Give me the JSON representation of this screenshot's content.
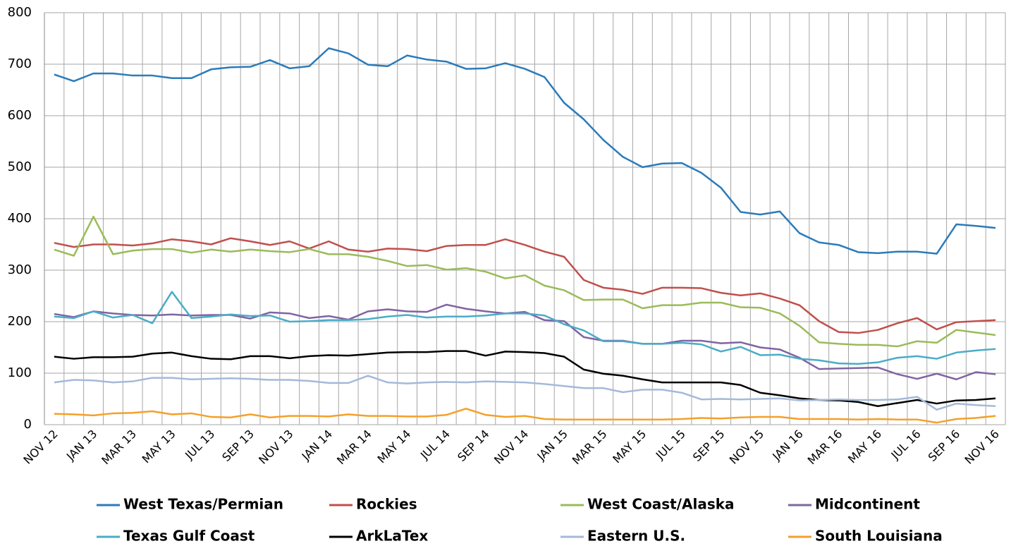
{
  "chart_data": {
    "type": "line",
    "categories": [
      "NOV 12",
      null,
      "JAN 13",
      null,
      "MAR 13",
      null,
      "MAY 13",
      null,
      "JUL 13",
      null,
      "SEP 13",
      null,
      "NOV 13",
      null,
      "JAN 14",
      null,
      "MAR 14",
      null,
      "MAY 14",
      null,
      "JUL 14",
      null,
      "SEP 14",
      null,
      "NOV 14",
      null,
      "JAN 15",
      null,
      "MAR 15",
      null,
      "MAY 15",
      null,
      "JUL 15",
      null,
      "SEP 15",
      null,
      "NOV 15",
      null,
      "JAN 16",
      null,
      "MAR 16",
      null,
      "MAY 16",
      null,
      "JUL 16",
      null,
      "SEP 16",
      null,
      "NOV 16"
    ],
    "ylim": [
      0,
      800
    ],
    "yticks": [
      0,
      100,
      200,
      300,
      400,
      500,
      600,
      700,
      800
    ],
    "grid": true,
    "series": [
      {
        "name": "West Texas/Permian",
        "color": "#2b7bba",
        "values": [
          680,
          667,
          682,
          682,
          678,
          678,
          673,
          673,
          690,
          694,
          695,
          708,
          692,
          696,
          731,
          721,
          699,
          696,
          717,
          709,
          705,
          691,
          692,
          702,
          691,
          675,
          625,
          593,
          553,
          520,
          500,
          507,
          508,
          489,
          460,
          413,
          408,
          414,
          372,
          354,
          349,
          335,
          333,
          336,
          336,
          332,
          389,
          386,
          382
        ]
      },
      {
        "name": "Rockies",
        "color": "#c0504d",
        "values": [
          353,
          345,
          350,
          350,
          348,
          352,
          360,
          356,
          350,
          362,
          356,
          349,
          356,
          342,
          356,
          340,
          336,
          342,
          341,
          337,
          347,
          349,
          349,
          360,
          349,
          336,
          326,
          281,
          266,
          262,
          254,
          266,
          266,
          265,
          256,
          251,
          255,
          245,
          232,
          201,
          180,
          178,
          184,
          197,
          207,
          185,
          199,
          201,
          203
        ]
      },
      {
        "name": "West Coast/Alaska",
        "color": "#9bbb59",
        "values": [
          340,
          328,
          404,
          331,
          338,
          341,
          341,
          334,
          340,
          336,
          340,
          337,
          335,
          341,
          331,
          331,
          326,
          318,
          308,
          310,
          301,
          304,
          297,
          284,
          290,
          270,
          261,
          242,
          243,
          243,
          226,
          232,
          232,
          237,
          237,
          228,
          227,
          216,
          192,
          160,
          157,
          155,
          155,
          152,
          162,
          159,
          184,
          179,
          174
        ]
      },
      {
        "name": "Midcontinent",
        "color": "#8064a2",
        "values": [
          215,
          209,
          220,
          216,
          213,
          212,
          214,
          212,
          213,
          213,
          206,
          218,
          216,
          207,
          211,
          204,
          220,
          224,
          220,
          219,
          233,
          225,
          220,
          216,
          219,
          203,
          201,
          170,
          163,
          163,
          157,
          157,
          163,
          163,
          158,
          160,
          150,
          146,
          130,
          108,
          109,
          110,
          111,
          98,
          89,
          99,
          88,
          102,
          98
        ]
      },
      {
        "name": "Texas Gulf Coast",
        "color": "#4bacc6",
        "values": [
          210,
          207,
          220,
          208,
          213,
          197,
          258,
          207,
          210,
          214,
          211,
          212,
          200,
          201,
          203,
          203,
          205,
          210,
          213,
          208,
          210,
          210,
          212,
          216,
          216,
          212,
          195,
          183,
          162,
          162,
          157,
          157,
          159,
          156,
          142,
          151,
          135,
          136,
          128,
          125,
          119,
          118,
          121,
          130,
          133,
          128,
          140,
          144,
          147
        ]
      },
      {
        "name": "ArkLaTex",
        "color": "#000000",
        "values": [
          132,
          128,
          131,
          131,
          132,
          138,
          140,
          133,
          128,
          127,
          133,
          133,
          129,
          133,
          135,
          134,
          137,
          140,
          141,
          141,
          143,
          143,
          134,
          142,
          141,
          139,
          132,
          107,
          99,
          95,
          88,
          82,
          82,
          82,
          82,
          77,
          62,
          57,
          51,
          48,
          47,
          44,
          36,
          42,
          48,
          41,
          47,
          48,
          51
        ]
      },
      {
        "name": "Eastern U.S.",
        "color": "#a5b9d9",
        "values": [
          82,
          87,
          86,
          82,
          84,
          91,
          91,
          88,
          89,
          90,
          89,
          87,
          87,
          85,
          81,
          81,
          95,
          82,
          80,
          82,
          83,
          82,
          84,
          83,
          82,
          79,
          75,
          71,
          71,
          63,
          68,
          68,
          62,
          49,
          50,
          49,
          50,
          51,
          47,
          48,
          49,
          48,
          48,
          49,
          54,
          29,
          41,
          38,
          36
        ]
      },
      {
        "name": "South Louisiana",
        "color": "#f5a02a",
        "values": [
          21,
          20,
          18,
          22,
          23,
          26,
          20,
          22,
          15,
          14,
          20,
          14,
          17,
          17,
          16,
          20,
          17,
          17,
          16,
          16,
          19,
          31,
          19,
          15,
          17,
          11,
          10,
          10,
          10,
          10,
          10,
          10,
          11,
          13,
          12,
          14,
          15,
          15,
          11,
          11,
          11,
          10,
          11,
          10,
          10,
          4,
          11,
          13,
          17
        ]
      }
    ]
  }
}
